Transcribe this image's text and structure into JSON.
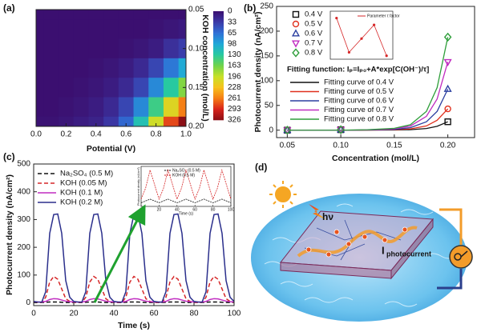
{
  "chart_data": [
    {
      "type": "contour",
      "panel_label": "(a)",
      "xlabel": "Potential (V)",
      "ylabel": "KOH concentration (mol/L)",
      "x": [
        0,
        0.1,
        0.2,
        0.3,
        0.4,
        0.5,
        0.6,
        0.7,
        0.8,
        0.9,
        1.0
      ],
      "y": [
        0.05,
        0.075,
        0.1,
        0.125,
        0.15,
        0.175,
        0.2
      ],
      "z": [
        [
          0,
          0,
          0,
          0,
          0,
          0,
          0,
          0,
          0,
          0,
          0
        ],
        [
          0,
          0,
          0,
          0,
          0,
          0,
          0,
          0,
          2,
          5,
          8
        ],
        [
          0,
          0,
          0,
          0,
          0,
          0,
          2,
          5,
          10,
          25,
          35
        ],
        [
          0,
          0,
          0,
          0,
          2,
          5,
          10,
          20,
          40,
          70,
          100
        ],
        [
          0,
          0,
          0,
          2,
          5,
          10,
          20,
          40,
          80,
          130,
          170
        ],
        [
          0,
          0,
          2,
          5,
          10,
          20,
          40,
          80,
          140,
          210,
          260
        ],
        [
          2,
          2,
          5,
          10,
          15,
          30,
          60,
          120,
          200,
          280,
          326
        ]
      ],
      "xlim": [
        0,
        1.0
      ],
      "ylim": [
        0.05,
        0.2
      ],
      "y_reversed": true,
      "xticks": [
        {
          "value": 0,
          "label": "0.0"
        },
        0.2,
        0.4,
        0.6,
        0.8,
        {
          "value": 1.0,
          "label": "1.0"
        }
      ],
      "yticks": [
        0.05,
        {
          "value": 0.1,
          "label": "0.10"
        },
        0.15,
        {
          "value": 0.2,
          "label": "0.20"
        }
      ],
      "colorbar": {
        "ticks": [
          0,
          33,
          65,
          98,
          130,
          163,
          196,
          228,
          261,
          293,
          326
        ],
        "colors": [
          "#3b0f70",
          "#3b3aa8",
          "#2f6fd6",
          "#1fa8d8",
          "#27c9a0",
          "#6fd34a",
          "#c8e028",
          "#f6c21c",
          "#f57d15",
          "#d9241b",
          "#8b0f16"
        ]
      }
    },
    {
      "type": "scatter",
      "panel_label": "(b)",
      "xlabel": "Concentration (mol/L)",
      "ylabel": "Photocurrent density (nA/cm²)",
      "xlim": [
        0.04,
        0.225
      ],
      "ylim": [
        -15,
        250
      ],
      "xticks": [
        0.05,
        {
          "value": 0.1,
          "label": "0.10"
        },
        0.15,
        {
          "value": 0.2,
          "label": "0.20"
        }
      ],
      "yticks": [
        0,
        50,
        100,
        150,
        200,
        250
      ],
      "x": [
        0.05,
        0.1,
        0.2
      ],
      "series": [
        {
          "name": "0.4 V",
          "color": "#111111",
          "marker": "square",
          "values": [
            0,
            1,
            17
          ]
        },
        {
          "name": "0.5 V",
          "color": "#e0301e",
          "marker": "circle",
          "values": [
            0,
            1,
            43
          ]
        },
        {
          "name": "0.6 V",
          "color": "#2b3fa0",
          "marker": "triangle-up",
          "values": [
            0,
            1,
            83
          ]
        },
        {
          "name": "0.7 V",
          "color": "#c02cc0",
          "marker": "triangle-down",
          "values": [
            0,
            1,
            138
          ]
        },
        {
          "name": "0.8 V",
          "color": "#2e9e3a",
          "marker": "diamond",
          "values": [
            0,
            1,
            188
          ]
        }
      ],
      "fit_function": "Fitting function: Iₚ=Iₚ₀+A*exp[C(OH⁻)/τ]",
      "fit_x": [
        0.05,
        0.1,
        0.125,
        0.15,
        0.165,
        0.18,
        0.19,
        0.2
      ],
      "fits": [
        {
          "name": "Fitting curve of 0.4 V",
          "color": "#111111",
          "values": [
            0,
            0,
            0.1,
            0.3,
            1,
            3.4,
            7.8,
            17
          ]
        },
        {
          "name": "Fitting curve of 0.5 V",
          "color": "#e0301e",
          "values": [
            0,
            0,
            0.2,
            0.9,
            2.6,
            8.6,
            20,
            43
          ]
        },
        {
          "name": "Fitting curve of 0.6 V",
          "color": "#2b3fa0",
          "values": [
            0,
            0,
            0.4,
            1.7,
            5,
            17,
            38,
            83
          ]
        },
        {
          "name": "Fitting curve of 0.7 V",
          "color": "#c02cc0",
          "values": [
            0,
            0,
            0.7,
            2.8,
            8.3,
            28,
            63,
            138
          ]
        },
        {
          "name": "Fitting curve of 0.8 V",
          "color": "#2e9e3a",
          "values": [
            0,
            0,
            0.9,
            3.8,
            11,
            38,
            86,
            188
          ]
        }
      ],
      "inset": {
        "legend": "Parameter τ factor",
        "color": "#d62728",
        "x": [
          0.4,
          0.5,
          0.6,
          0.7,
          0.8
        ],
        "values": [
          2.2,
          1.2,
          1.6,
          2.0,
          1.1
        ],
        "xlim": [
          0.35,
          0.85
        ],
        "ylim": [
          1,
          2.4
        ]
      }
    },
    {
      "type": "line",
      "panel_label": "(c)",
      "xlabel": "Time (s)",
      "ylabel": "Photocurrent density (nA/cm²)",
      "xlim": [
        0,
        100
      ],
      "ylim": [
        -10,
        500
      ],
      "xticks": [
        0,
        20,
        40,
        60,
        80,
        100
      ],
      "yticks": [
        0,
        100,
        200,
        300,
        400,
        500
      ],
      "x": [
        0,
        2,
        4,
        6,
        8,
        10,
        12,
        14,
        16,
        18,
        20,
        22,
        24,
        26,
        28,
        30,
        32,
        34,
        36,
        38,
        40,
        42,
        44,
        46,
        48,
        50,
        52,
        54,
        56,
        58,
        60,
        62,
        64,
        66,
        68,
        70,
        72,
        74,
        76,
        78,
        80,
        82,
        84,
        86,
        88,
        90,
        92,
        94,
        96,
        98,
        100
      ],
      "series": [
        {
          "name": "Na₂SO₄ (0.5 M)",
          "color": "#111111",
          "dashed": true,
          "values": [
            1,
            1,
            1,
            2,
            3,
            3,
            3,
            2,
            1,
            1,
            1,
            1,
            1,
            2,
            3,
            3,
            3,
            2,
            1,
            1,
            1,
            1,
            1,
            2,
            3,
            3,
            3,
            2,
            1,
            1,
            1,
            1,
            1,
            2,
            3,
            3,
            3,
            2,
            1,
            1,
            1,
            1,
            1,
            2,
            3,
            3,
            3,
            2,
            1,
            1,
            1
          ]
        },
        {
          "name": "KOH (0.05 M)",
          "color": "#d62728",
          "dashed": true,
          "values": [
            2,
            1,
            1,
            20,
            75,
            95,
            85,
            50,
            15,
            5,
            2,
            1,
            1,
            20,
            75,
            95,
            85,
            50,
            15,
            5,
            2,
            1,
            1,
            20,
            75,
            95,
            85,
            50,
            15,
            5,
            2,
            1,
            1,
            20,
            75,
            95,
            85,
            50,
            15,
            5,
            2,
            1,
            1,
            20,
            75,
            95,
            85,
            50,
            15,
            5,
            2
          ]
        },
        {
          "name": "KOH (0.1 M)",
          "color": "#c02cc0",
          "dashed": false,
          "values": [
            3,
            3,
            3,
            5,
            12,
            15,
            14,
            10,
            6,
            4,
            3,
            3,
            3,
            5,
            12,
            15,
            14,
            10,
            6,
            4,
            3,
            3,
            3,
            5,
            12,
            15,
            14,
            10,
            6,
            4,
            3,
            3,
            3,
            5,
            12,
            15,
            14,
            10,
            6,
            4,
            3,
            3,
            3,
            5,
            12,
            15,
            14,
            10,
            6,
            4,
            3
          ]
        },
        {
          "name": "KOH (0.2 M)",
          "color": "#2b2f8c",
          "dashed": false,
          "values": [
            5,
            3,
            2,
            40,
            250,
            318,
            320,
            250,
            80,
            20,
            5,
            3,
            2,
            40,
            250,
            318,
            320,
            250,
            80,
            20,
            5,
            3,
            2,
            40,
            250,
            318,
            320,
            250,
            80,
            20,
            5,
            3,
            2,
            40,
            250,
            318,
            320,
            250,
            80,
            20,
            5,
            3,
            2,
            40,
            250,
            318,
            320,
            250,
            80,
            20,
            5
          ]
        }
      ],
      "inset": {
        "xlabel": "Time (s)",
        "ylabel": "Photocurrent density (nA/cm²)",
        "xlim": [
          0,
          100
        ],
        "ylim": [
          0,
          1.1
        ],
        "xticks": [
          0,
          20,
          40,
          60,
          80,
          100
        ],
        "x": [
          0,
          5,
          10,
          15,
          20,
          25,
          30,
          35,
          40,
          45,
          50,
          55,
          60,
          65,
          70,
          75,
          80,
          85,
          90,
          95,
          100
        ],
        "series": [
          {
            "name": "Na₂SO₄ (0.5 M)",
            "color": "#111111",
            "values": [
              0.1,
              0.15,
              0.2,
              0.15,
              0.1,
              0.15,
              0.2,
              0.15,
              0.1,
              0.15,
              0.2,
              0.15,
              0.1,
              0.15,
              0.2,
              0.15,
              0.1,
              0.15,
              0.2,
              0.15,
              0.1
            ]
          },
          {
            "name": "KOH (0.5 M)",
            "color": "#d62728",
            "values": [
              0.2,
              0.5,
              1.0,
              0.6,
              0.2,
              0.5,
              1.0,
              0.6,
              0.2,
              0.5,
              1.0,
              0.6,
              0.2,
              0.5,
              1.0,
              0.6,
              0.2,
              0.5,
              1.0,
              0.6,
              0.2
            ]
          }
        ]
      }
    }
  ],
  "diagram": {
    "panel_label": "(d)",
    "light": "hν",
    "current": "I",
    "current_subscript": "photocurrent"
  }
}
